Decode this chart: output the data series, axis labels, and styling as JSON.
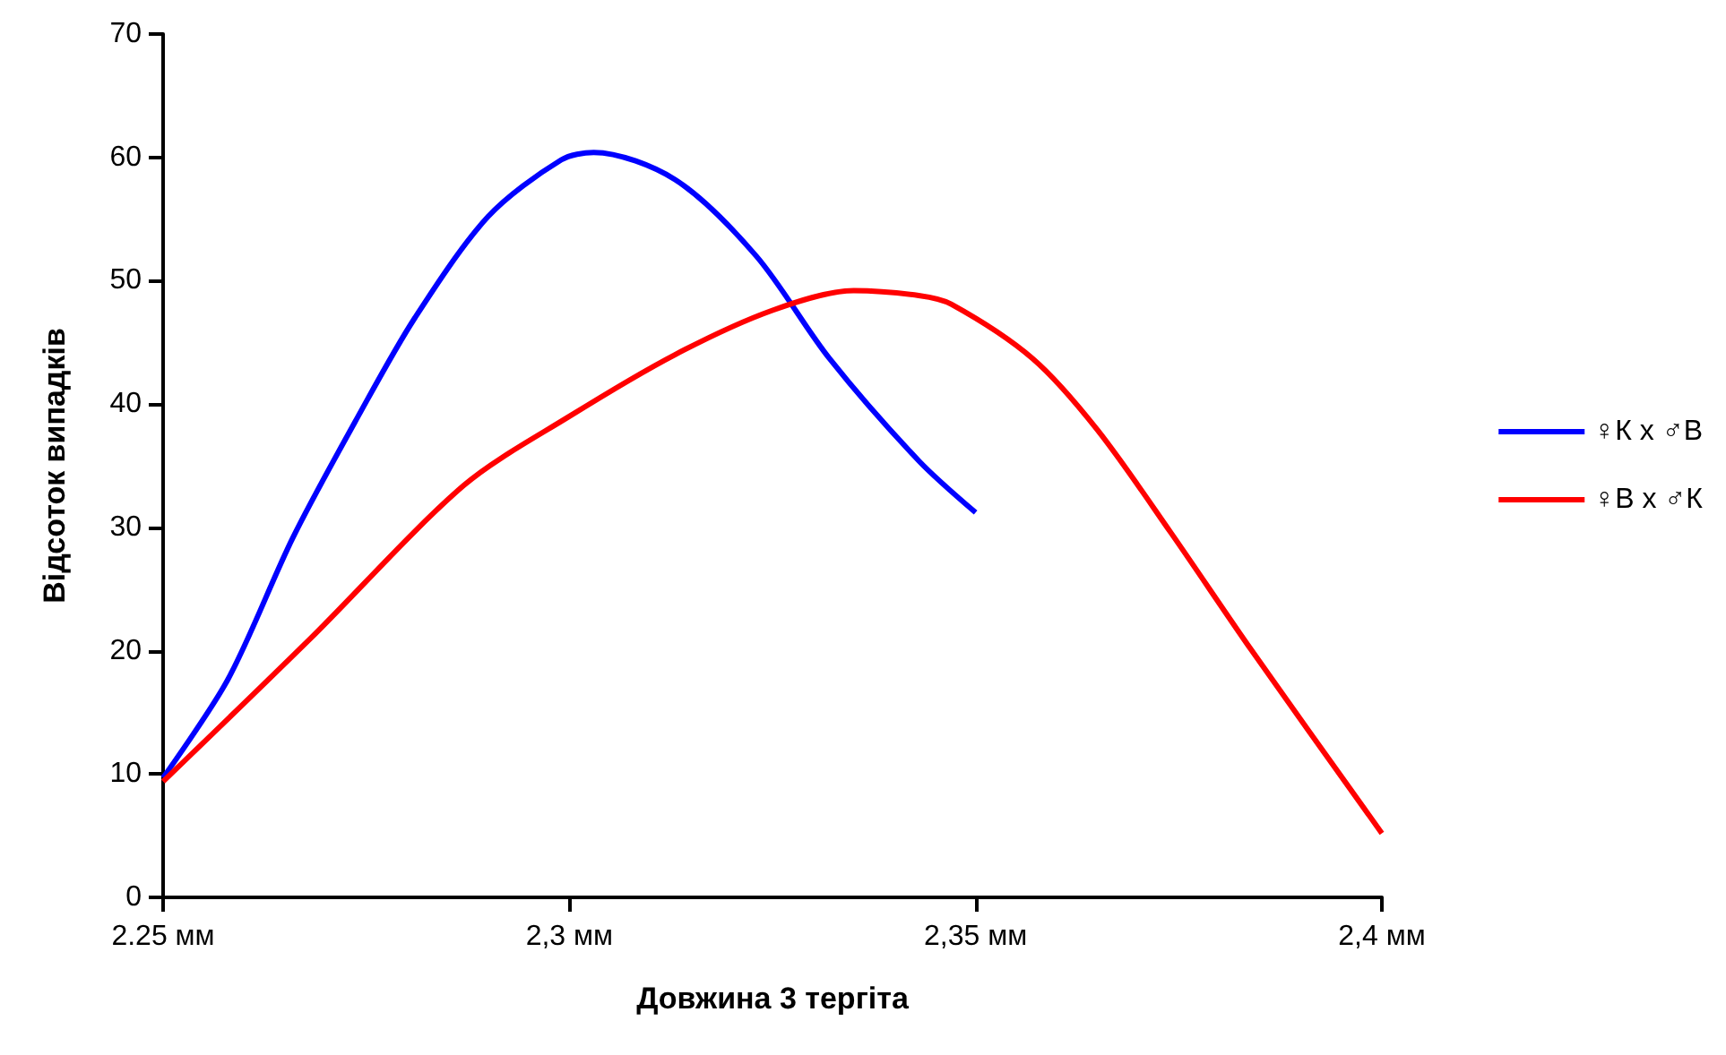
{
  "chart_data": {
    "type": "line",
    "xlabel": "Довжина 3 тергіта",
    "ylabel": "Відсоток випадків",
    "xlim": [
      2.25,
      2.4
    ],
    "xticks": [
      {
        "value": 2.25,
        "label": "2.25 мм"
      },
      {
        "value": 2.3,
        "label": "2,3 мм"
      },
      {
        "value": 2.35,
        "label": "2,35 мм"
      },
      {
        "value": 2.4,
        "label": "2,4 мм"
      }
    ],
    "ylim": [
      0,
      70
    ],
    "yticks": [
      0,
      10,
      20,
      30,
      40,
      50,
      60,
      70
    ],
    "grid": false,
    "legend": "right",
    "marker": "none",
    "line_style": "solid",
    "series": [
      {
        "name": "♀К x ♂В",
        "color": "#0000ff",
        "x": [
          2.25,
          2.258,
          2.266,
          2.274,
          2.281,
          2.29,
          2.299,
          2.303,
          2.313,
          2.323,
          2.332,
          2.343,
          2.35
        ],
        "values": [
          9.7,
          17.7,
          29.2,
          39,
          47,
          55.2,
          59.8,
          60.4,
          58.2,
          52,
          43.7,
          35.4,
          31.2
        ]
      },
      {
        "name": "♀В x ♂К",
        "color": "#ff0000",
        "x": [
          2.25,
          2.268,
          2.287,
          2.3,
          2.313,
          2.325,
          2.335,
          2.343,
          2.347,
          2.357,
          2.365,
          2.374,
          2.384,
          2.4
        ],
        "values": [
          9.4,
          20.9,
          33.4,
          39,
          44,
          47.6,
          49.2,
          48.8,
          48.1,
          43.7,
          37.9,
          29.6,
          20,
          5.2
        ]
      }
    ]
  }
}
